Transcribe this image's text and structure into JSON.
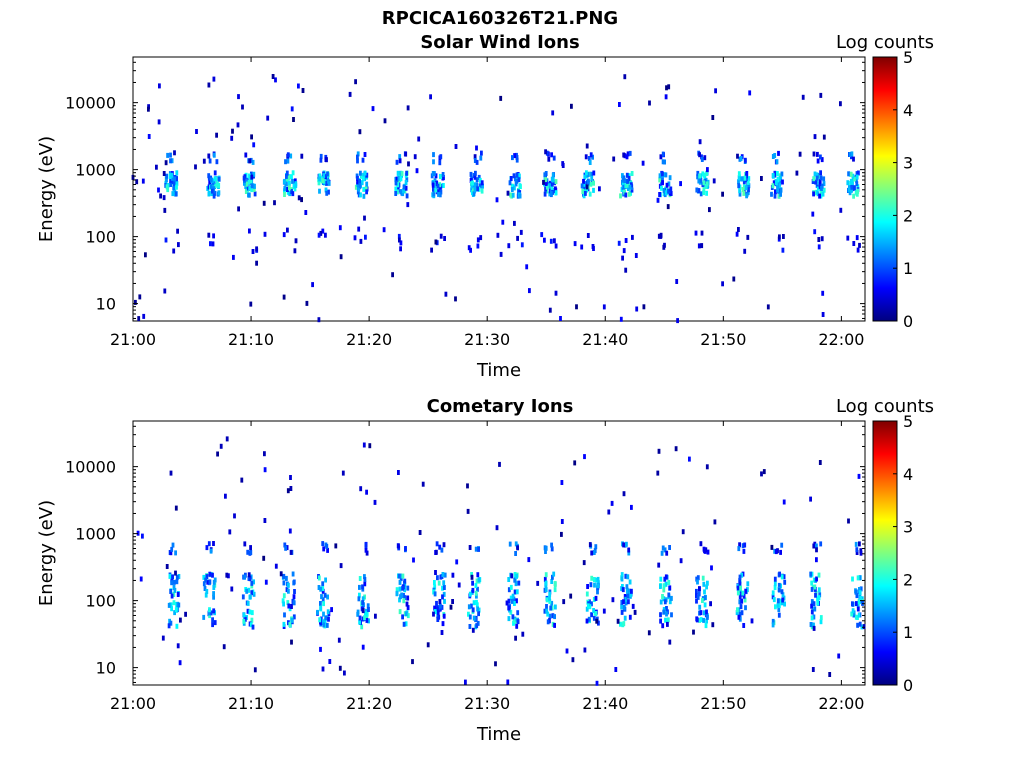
{
  "figure": {
    "title": "RPCICA160326T21.PNG"
  },
  "chart_data": [
    {
      "type": "heatmap",
      "title": "Solar Wind Ions",
      "xlabel": "Time",
      "ylabel": "Energy (eV)",
      "x_ticks": [
        "21:00",
        "21:10",
        "21:20",
        "21:30",
        "21:40",
        "21:50",
        "22:00"
      ],
      "x_range": [
        "21:00",
        "22:02"
      ],
      "y_scale": "log",
      "y_ticks": [
        "10",
        "100",
        "1000",
        "10000"
      ],
      "y_range": [
        5.5,
        48000
      ],
      "colorbar": {
        "label": "Log counts",
        "range": [
          0,
          5
        ],
        "ticks": [
          "0",
          "1",
          "2",
          "3",
          "4",
          "5"
        ]
      },
      "features": {
        "main_band_energy_eV": [
          400,
          900
        ],
        "upper_band_energy_eV": 1500,
        "low_energy_blips_eV": [
          60,
          130
        ],
        "burst_interval_min": 3.2,
        "peak_log_counts": 2.3
      }
    },
    {
      "type": "heatmap",
      "title": "Cometary Ions",
      "xlabel": "Time",
      "ylabel": "Energy (eV)",
      "x_ticks": [
        "21:00",
        "21:10",
        "21:20",
        "21:30",
        "21:40",
        "21:50",
        "22:00"
      ],
      "x_range": [
        "21:00",
        "22:02"
      ],
      "y_scale": "log",
      "y_ticks": [
        "10",
        "100",
        "1000",
        "10000"
      ],
      "y_range": [
        5.5,
        48000
      ],
      "colorbar": {
        "label": "Log counts",
        "range": [
          0,
          5
        ],
        "ticks": [
          "0",
          "1",
          "2",
          "3",
          "4",
          "5"
        ]
      },
      "features": {
        "main_band_energy_eV": [
          40,
          250
        ],
        "upper_band_energy_eV": 600,
        "burst_interval_min": 3.2,
        "peak_log_counts": 2.2
      }
    }
  ],
  "colors": {
    "cmap": [
      "#00007f",
      "#0000ff",
      "#007fff",
      "#00ffff",
      "#7fff7f",
      "#ffff00",
      "#ff7f00",
      "#ff0000",
      "#7f0000"
    ]
  }
}
